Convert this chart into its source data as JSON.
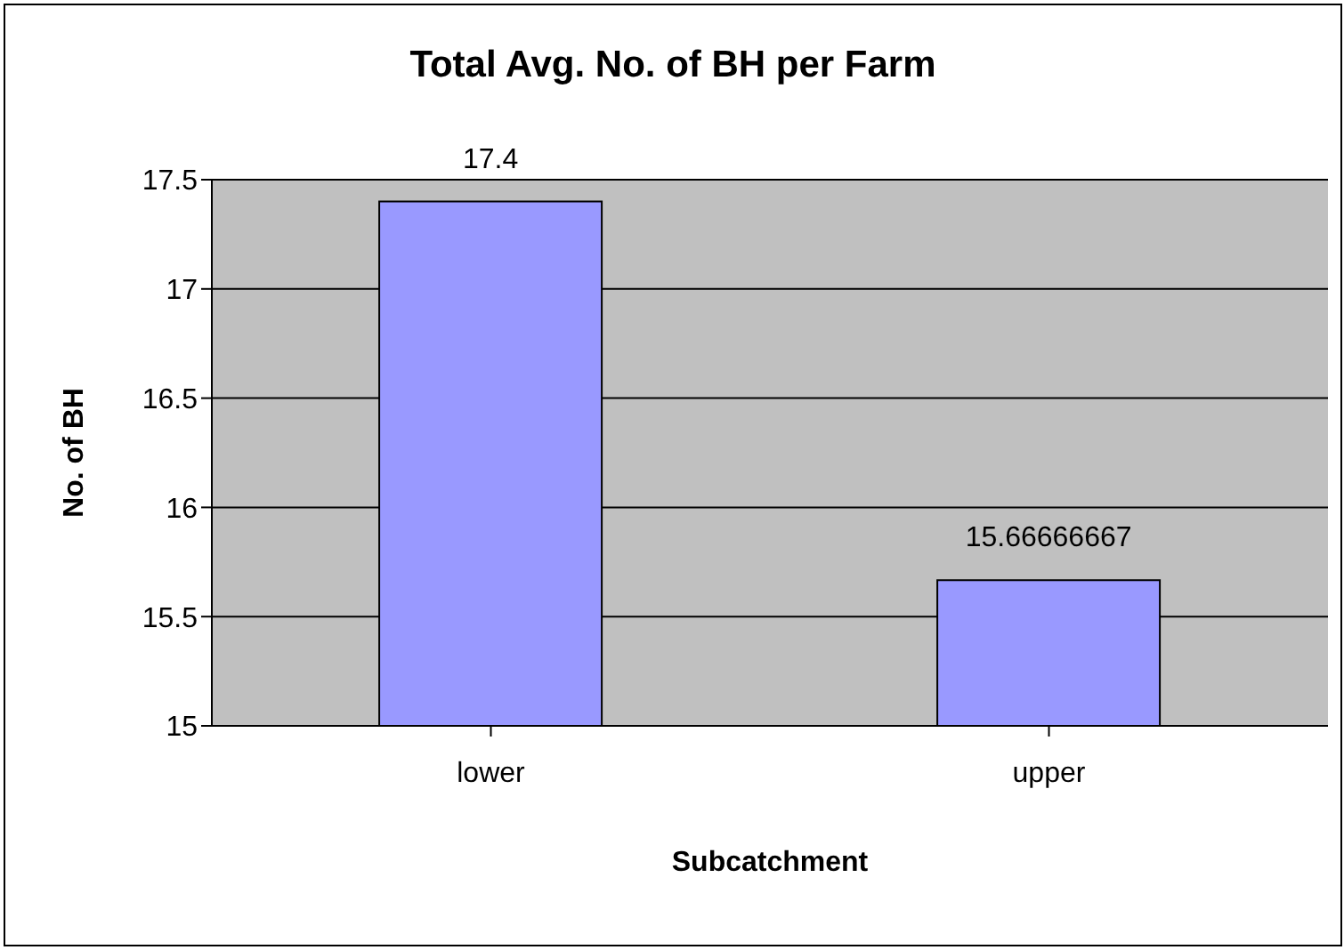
{
  "chart_data": {
    "type": "bar",
    "title": "Total Avg. No. of BH per Farm",
    "xlabel": "Subcatchment",
    "ylabel": "No. of BH",
    "categories": [
      "lower",
      "upper"
    ],
    "values": [
      17.4,
      15.66666667
    ],
    "color": "#9999ff",
    "ylim": [
      15,
      17.5
    ],
    "yticks": [
      15,
      15.5,
      16,
      16.5,
      17,
      17.5
    ],
    "grid": "y",
    "data_labels": true,
    "legend": false
  }
}
